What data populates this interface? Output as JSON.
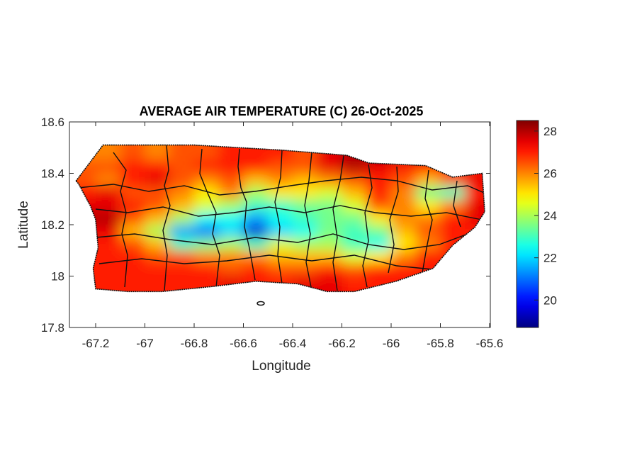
{
  "chart_data": {
    "type": "heatmap",
    "title": "AVERAGE AIR TEMPERATURE (C) 26-Oct-2025",
    "xlabel": "Longitude",
    "ylabel": "Latitude",
    "xlim": [
      -67.3,
      -65.6
    ],
    "ylim": [
      17.8,
      18.6
    ],
    "xticks": [
      "-67.2",
      "-67",
      "-66.8",
      "-66.6",
      "-66.4",
      "-66.2",
      "-66",
      "-65.8",
      "-65.6"
    ],
    "xtick_values": [
      -67.2,
      -67,
      -66.8,
      -66.6,
      -66.4,
      -66.2,
      -66,
      -65.8,
      -65.6
    ],
    "yticks": [
      "18.6",
      "18.4",
      "18.2",
      "18"
    ],
    "ytick_values": [
      18.6,
      18.4,
      18.2,
      18.0
    ],
    "extra_ytick": {
      "label": "17.8",
      "value": 17.8
    },
    "colormap": "jet",
    "colorbar": {
      "range": [
        18.7,
        28.5
      ],
      "ticks": [
        "20",
        "22",
        "24",
        "26",
        "28"
      ],
      "tick_values": [
        20,
        22,
        24,
        26,
        28
      ]
    },
    "grid": false,
    "grid_lon": [
      -67.25,
      -67.15,
      -67.05,
      -66.95,
      -66.85,
      -66.75,
      -66.65,
      -66.55,
      -66.45,
      -66.35,
      -66.25,
      -66.15,
      -66.05,
      -65.95,
      -65.85,
      -65.75,
      -65.65
    ],
    "grid_lat": [
      18.475,
      18.425,
      18.375,
      18.325,
      18.275,
      18.225,
      18.175,
      18.125,
      18.075,
      18.025,
      17.975
    ],
    "values": [
      [
        null,
        26,
        26.5,
        26,
        26.5,
        26.5,
        27,
        27,
        27,
        26.5,
        27.5,
        28,
        28,
        28,
        27.5,
        null,
        null
      ],
      [
        null,
        26.5,
        27,
        27,
        26.5,
        27,
        27,
        27,
        26.5,
        26.5,
        27.5,
        28,
        27.5,
        27,
        27,
        27,
        null
      ],
      [
        26.5,
        26,
        27,
        27.5,
        26.5,
        26,
        26.5,
        25.5,
        26,
        25.5,
        26,
        26.5,
        27,
        26.5,
        25.5,
        26.5,
        27.5
      ],
      [
        27,
        27.5,
        26.5,
        26.5,
        26,
        25,
        26,
        24,
        25,
        25,
        24.5,
        25.5,
        27,
        26,
        23.5,
        23,
        27
      ],
      [
        null,
        27.5,
        27,
        26.5,
        25.5,
        24.5,
        24,
        23,
        23,
        23.5,
        23.5,
        24.5,
        26.5,
        26,
        25,
        26,
        27.5
      ],
      [
        null,
        28,
        26.5,
        25.5,
        24,
        22.5,
        22.5,
        21.5,
        22.5,
        23,
        23.5,
        23.5,
        25,
        26,
        26,
        27,
        27.5
      ],
      [
        null,
        27.5,
        25.5,
        24,
        21.5,
        21,
        22,
        19.5,
        22,
        22.5,
        23.5,
        23,
        23.5,
        25.5,
        26.5,
        27,
        null
      ],
      [
        null,
        27,
        26.5,
        25.5,
        23,
        23.5,
        24,
        23,
        24.5,
        24,
        24,
        23,
        22.5,
        25,
        26,
        27,
        null
      ],
      [
        null,
        27,
        27,
        26.5,
        26.5,
        26,
        26,
        26,
        25.5,
        25.5,
        25.5,
        24.5,
        25,
        26,
        27,
        null,
        null
      ],
      [
        null,
        27,
        27,
        27,
        27,
        27,
        26.5,
        27,
        26.5,
        26.5,
        27,
        26.5,
        27,
        27,
        27,
        null,
        null
      ],
      [
        null,
        27,
        27,
        27,
        27,
        27,
        27.5,
        27,
        27,
        27.5,
        27.5,
        27,
        27,
        null,
        null,
        null,
        null
      ]
    ],
    "island_outline": [
      [
        -67.28,
        18.37
      ],
      [
        -67.17,
        18.51
      ],
      [
        -66.8,
        18.51
      ],
      [
        -66.44,
        18.49
      ],
      [
        -66.18,
        18.47
      ],
      [
        -66.09,
        18.44
      ],
      [
        -65.86,
        18.43
      ],
      [
        -65.75,
        18.385
      ],
      [
        -65.63,
        18.4
      ],
      [
        -65.62,
        18.25
      ],
      [
        -65.66,
        18.19
      ],
      [
        -65.75,
        18.12
      ],
      [
        -65.83,
        18.03
      ],
      [
        -65.98,
        17.98
      ],
      [
        -66.15,
        17.94
      ],
      [
        -66.26,
        17.94
      ],
      [
        -66.38,
        17.97
      ],
      [
        -66.55,
        17.98
      ],
      [
        -66.72,
        17.96
      ],
      [
        -66.93,
        17.94
      ],
      [
        -67.07,
        17.94
      ],
      [
        -67.2,
        17.95
      ],
      [
        -67.21,
        18.03
      ],
      [
        -67.19,
        18.11
      ],
      [
        -67.2,
        18.22
      ],
      [
        -67.22,
        18.27
      ],
      [
        -67.27,
        18.36
      ]
    ]
  }
}
